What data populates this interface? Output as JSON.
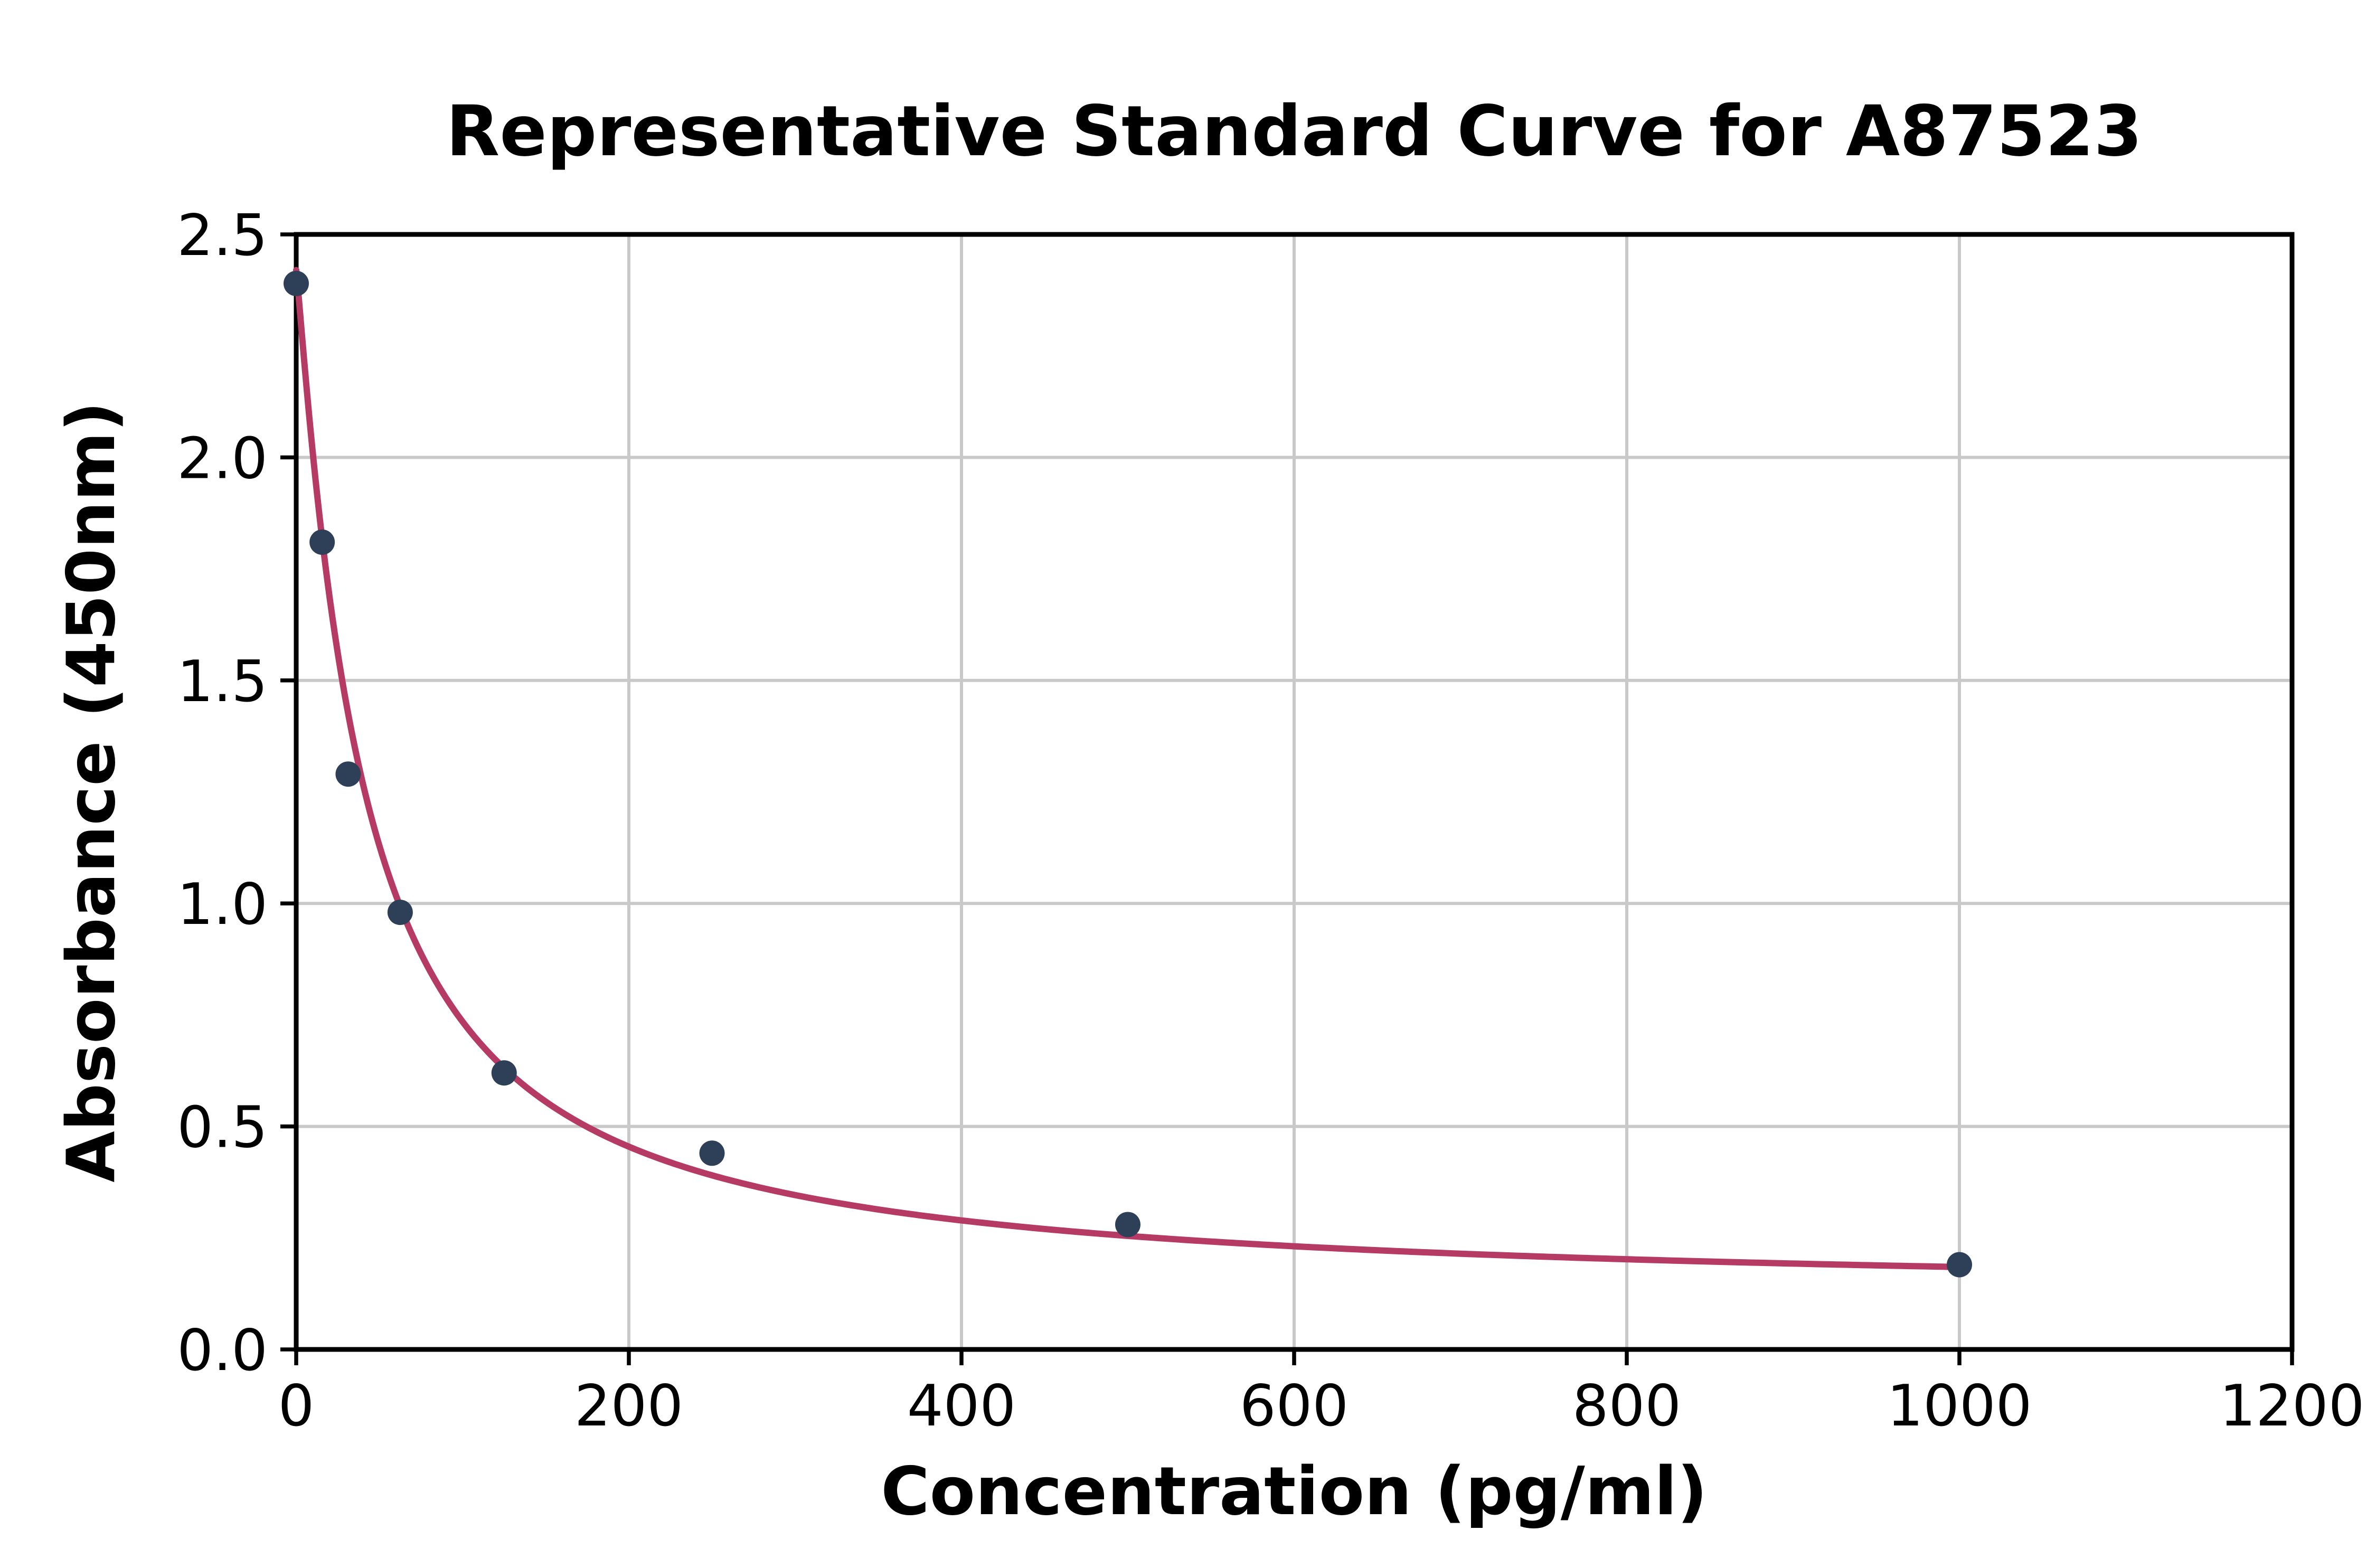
{
  "page": {
    "background": "#ffffff"
  },
  "chart_data": {
    "type": "scatter",
    "title": "Representative Standard Curve for A87523",
    "xlabel": "Concentration (pg/ml)",
    "ylabel": "Absorbance (450nm)",
    "xlim": [
      0,
      1200
    ],
    "ylim": [
      0,
      2.5
    ],
    "x_ticks": [
      0,
      200,
      400,
      600,
      800,
      1000,
      1200
    ],
    "x_tick_labels": [
      "0",
      "200",
      "400",
      "600",
      "800",
      "1000",
      "1200"
    ],
    "y_ticks": [
      0,
      0.5,
      1.0,
      1.5,
      2.0,
      2.5
    ],
    "y_tick_labels": [
      "0.0",
      "0.5",
      "1.0",
      "1.5",
      "2.0",
      "2.5"
    ],
    "grid": true,
    "legend": "none",
    "points": [
      {
        "x": 0,
        "y": 2.39
      },
      {
        "x": 15.6,
        "y": 1.81
      },
      {
        "x": 31.25,
        "y": 1.29
      },
      {
        "x": 62.5,
        "y": 0.98
      },
      {
        "x": 125,
        "y": 0.62
      },
      {
        "x": 250,
        "y": 0.44
      },
      {
        "x": 500,
        "y": 0.28
      },
      {
        "x": 1000,
        "y": 0.19
      }
    ],
    "fit_curve": {
      "model": "4PL",
      "a": 2.42,
      "b": 1.1,
      "c": 40,
      "d": 0.12,
      "x_min": 0,
      "x_max": 1000
    },
    "colors": {
      "point": "#2e4057",
      "curve": "#b53a64",
      "grid": "#c9c9c9",
      "axis": "#000000",
      "background": "#ffffff"
    }
  }
}
